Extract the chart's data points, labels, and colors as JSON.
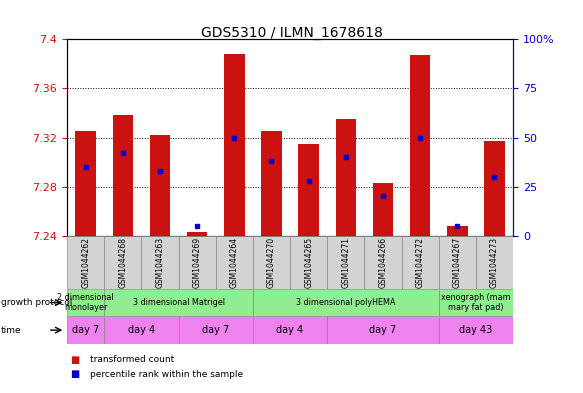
{
  "title": "GDS5310 / ILMN_1678618",
  "samples": [
    "GSM1044262",
    "GSM1044268",
    "GSM1044263",
    "GSM1044269",
    "GSM1044264",
    "GSM1044270",
    "GSM1044265",
    "GSM1044271",
    "GSM1044266",
    "GSM1044272",
    "GSM1044267",
    "GSM1044273"
  ],
  "bar_base": 7.24,
  "transformed_count": [
    7.325,
    7.338,
    7.322,
    7.243,
    7.388,
    7.325,
    7.315,
    7.335,
    7.283,
    7.387,
    7.248,
    7.317
  ],
  "percentile_rank": [
    35,
    42,
    33,
    5,
    50,
    38,
    28,
    40,
    20,
    50,
    5,
    30
  ],
  "ylim_left": [
    7.24,
    7.4
  ],
  "ylim_right": [
    0,
    100
  ],
  "yticks_left": [
    7.24,
    7.28,
    7.32,
    7.36,
    7.4
  ],
  "yticks_left_labels": [
    "7.24",
    "7.28",
    "7.32",
    "7.36",
    "7.4"
  ],
  "yticks_right": [
    0,
    25,
    50,
    75,
    100
  ],
  "yticks_right_labels": [
    "0",
    "25",
    "50",
    "75",
    "100%"
  ],
  "bar_color": "#cc1111",
  "dot_color": "#0000cc",
  "bar_width": 0.55,
  "growth_protocol_groups": [
    {
      "label": "2 dimensional\nmonolayer",
      "start": 0,
      "end": 1,
      "color": "#90ee90"
    },
    {
      "label": "3 dimensional Matrigel",
      "start": 1,
      "end": 5,
      "color": "#90ee90"
    },
    {
      "label": "3 dimensional polyHEMA",
      "start": 5,
      "end": 10,
      "color": "#90ee90"
    },
    {
      "label": "xenograph (mam\nmary fat pad)",
      "start": 10,
      "end": 12,
      "color": "#90ee90"
    }
  ],
  "time_groups": [
    {
      "label": "day 7",
      "start": 0,
      "end": 1,
      "color": "#ee82ee"
    },
    {
      "label": "day 4",
      "start": 1,
      "end": 3,
      "color": "#ee82ee"
    },
    {
      "label": "day 7",
      "start": 3,
      "end": 5,
      "color": "#ee82ee"
    },
    {
      "label": "day 4",
      "start": 5,
      "end": 7,
      "color": "#ee82ee"
    },
    {
      "label": "day 7",
      "start": 7,
      "end": 10,
      "color": "#ee82ee"
    },
    {
      "label": "day 43",
      "start": 10,
      "end": 12,
      "color": "#ee82ee"
    }
  ],
  "bg_color": "#ffffff",
  "tick_label_bg": "#d3d3d3",
  "left_axis_color": "#cc1111",
  "right_axis_color": "#0000cc",
  "legend_items": [
    {
      "label": "transformed count",
      "color": "#cc1111"
    },
    {
      "label": "percentile rank within the sample",
      "color": "#0000cc"
    }
  ],
  "grid_yticks": [
    7.28,
    7.32,
    7.36
  ]
}
